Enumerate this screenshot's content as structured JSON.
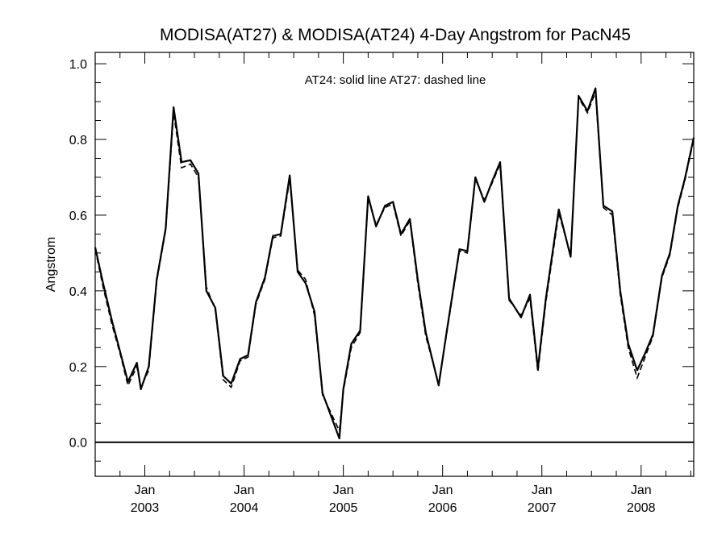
{
  "chart_data": {
    "type": "line",
    "title": "MODISA(AT27) & MODISA(AT24) 4-Day Angstrom for PacN45",
    "ylabel": "Angstrom",
    "xlabel": "",
    "annotation": "AT24: solid line   AT27: dashed line",
    "ylim": [
      -0.09,
      1.03
    ],
    "xlim": [
      2002.5,
      2008.53
    ],
    "y_ticks": [
      0.0,
      0.2,
      0.4,
      0.6,
      0.8,
      1.0
    ],
    "y_tick_labels": [
      "0.0",
      "0.2",
      "0.4",
      "0.6",
      "0.8",
      "1.0"
    ],
    "x_ticks": [
      {
        "x": 2003.0,
        "month": "Jan",
        "year": "2003"
      },
      {
        "x": 2004.0,
        "month": "Jan",
        "year": "2004"
      },
      {
        "x": 2005.0,
        "month": "Jan",
        "year": "2005"
      },
      {
        "x": 2006.0,
        "month": "Jan",
        "year": "2006"
      },
      {
        "x": 2007.0,
        "month": "Jan",
        "year": "2007"
      },
      {
        "x": 2008.0,
        "month": "Jan",
        "year": "2008"
      }
    ],
    "reference_line": 0.0,
    "series": [
      {
        "style": "solid",
        "points": [
          [
            2002.5,
            0.515
          ],
          [
            2002.58,
            0.42
          ],
          [
            2002.67,
            0.32
          ],
          [
            2002.75,
            0.24
          ],
          [
            2002.83,
            0.16
          ],
          [
            2002.92,
            0.21
          ],
          [
            2002.96,
            0.14
          ],
          [
            2003.04,
            0.2
          ],
          [
            2003.12,
            0.43
          ],
          [
            2003.21,
            0.565
          ],
          [
            2003.29,
            0.885
          ],
          [
            2003.37,
            0.74
          ],
          [
            2003.46,
            0.745
          ],
          [
            2003.54,
            0.71
          ],
          [
            2003.62,
            0.4
          ],
          [
            2003.71,
            0.355
          ],
          [
            2003.79,
            0.175
          ],
          [
            2003.87,
            0.155
          ],
          [
            2003.96,
            0.22
          ],
          [
            2004.04,
            0.23
          ],
          [
            2004.12,
            0.37
          ],
          [
            2004.21,
            0.435
          ],
          [
            2004.29,
            0.545
          ],
          [
            2004.37,
            0.55
          ],
          [
            2004.46,
            0.705
          ],
          [
            2004.54,
            0.45
          ],
          [
            2004.62,
            0.42
          ],
          [
            2004.71,
            0.345
          ],
          [
            2004.79,
            0.13
          ],
          [
            2004.96,
            0.01
          ],
          [
            2005.0,
            0.14
          ],
          [
            2005.08,
            0.26
          ],
          [
            2005.17,
            0.295
          ],
          [
            2005.25,
            0.65
          ],
          [
            2005.33,
            0.57
          ],
          [
            2005.42,
            0.625
          ],
          [
            2005.5,
            0.635
          ],
          [
            2005.58,
            0.55
          ],
          [
            2005.67,
            0.59
          ],
          [
            2005.75,
            0.43
          ],
          [
            2005.83,
            0.29
          ],
          [
            2005.96,
            0.15
          ],
          [
            2006.04,
            0.29
          ],
          [
            2006.17,
            0.51
          ],
          [
            2006.25,
            0.505
          ],
          [
            2006.33,
            0.7
          ],
          [
            2006.42,
            0.635
          ],
          [
            2006.5,
            0.69
          ],
          [
            2006.58,
            0.74
          ],
          [
            2006.67,
            0.38
          ],
          [
            2006.79,
            0.33
          ],
          [
            2006.88,
            0.39
          ],
          [
            2006.96,
            0.195
          ],
          [
            2007.04,
            0.38
          ],
          [
            2007.17,
            0.615
          ],
          [
            2007.29,
            0.49
          ],
          [
            2007.37,
            0.915
          ],
          [
            2007.46,
            0.875
          ],
          [
            2007.54,
            0.935
          ],
          [
            2007.62,
            0.625
          ],
          [
            2007.71,
            0.61
          ],
          [
            2007.79,
            0.4
          ],
          [
            2007.87,
            0.26
          ],
          [
            2007.96,
            0.19
          ],
          [
            2008.04,
            0.235
          ],
          [
            2008.12,
            0.285
          ],
          [
            2008.21,
            0.44
          ],
          [
            2008.29,
            0.5
          ],
          [
            2008.37,
            0.625
          ],
          [
            2008.44,
            0.695
          ],
          [
            2008.53,
            0.805
          ]
        ]
      },
      {
        "style": "dashed",
        "points": [
          [
            2002.5,
            0.51
          ],
          [
            2002.58,
            0.41
          ],
          [
            2002.67,
            0.31
          ],
          [
            2002.75,
            0.235
          ],
          [
            2002.83,
            0.15
          ],
          [
            2002.92,
            0.2
          ],
          [
            2002.96,
            0.145
          ],
          [
            2003.04,
            0.19
          ],
          [
            2003.12,
            0.425
          ],
          [
            2003.21,
            0.56
          ],
          [
            2003.29,
            0.87
          ],
          [
            2003.37,
            0.725
          ],
          [
            2003.46,
            0.735
          ],
          [
            2003.54,
            0.7
          ],
          [
            2003.62,
            0.41
          ],
          [
            2003.71,
            0.35
          ],
          [
            2003.79,
            0.165
          ],
          [
            2003.87,
            0.145
          ],
          [
            2003.96,
            0.215
          ],
          [
            2004.04,
            0.225
          ],
          [
            2004.12,
            0.365
          ],
          [
            2004.21,
            0.43
          ],
          [
            2004.29,
            0.54
          ],
          [
            2004.37,
            0.545
          ],
          [
            2004.46,
            0.695
          ],
          [
            2004.54,
            0.455
          ],
          [
            2004.62,
            0.43
          ],
          [
            2004.71,
            0.335
          ],
          [
            2004.79,
            0.125
          ],
          [
            2004.96,
            0.03
          ],
          [
            2005.0,
            0.135
          ],
          [
            2005.08,
            0.25
          ],
          [
            2005.17,
            0.29
          ],
          [
            2005.25,
            0.645
          ],
          [
            2005.33,
            0.575
          ],
          [
            2005.42,
            0.62
          ],
          [
            2005.5,
            0.63
          ],
          [
            2005.58,
            0.545
          ],
          [
            2005.67,
            0.585
          ],
          [
            2005.75,
            0.42
          ],
          [
            2005.83,
            0.28
          ],
          [
            2005.96,
            0.155
          ],
          [
            2006.04,
            0.285
          ],
          [
            2006.17,
            0.505
          ],
          [
            2006.25,
            0.5
          ],
          [
            2006.33,
            0.695
          ],
          [
            2006.42,
            0.64
          ],
          [
            2006.5,
            0.685
          ],
          [
            2006.58,
            0.735
          ],
          [
            2006.67,
            0.375
          ],
          [
            2006.79,
            0.335
          ],
          [
            2006.88,
            0.38
          ],
          [
            2006.96,
            0.185
          ],
          [
            2007.04,
            0.37
          ],
          [
            2007.17,
            0.605
          ],
          [
            2007.29,
            0.495
          ],
          [
            2007.37,
            0.91
          ],
          [
            2007.46,
            0.87
          ],
          [
            2007.54,
            0.925
          ],
          [
            2007.62,
            0.62
          ],
          [
            2007.71,
            0.6
          ],
          [
            2007.79,
            0.39
          ],
          [
            2007.87,
            0.25
          ],
          [
            2007.96,
            0.17
          ],
          [
            2008.04,
            0.225
          ],
          [
            2008.12,
            0.28
          ],
          [
            2008.21,
            0.435
          ],
          [
            2008.29,
            0.495
          ],
          [
            2008.37,
            0.62
          ],
          [
            2008.44,
            0.69
          ],
          [
            2008.53,
            0.8
          ]
        ]
      }
    ]
  }
}
